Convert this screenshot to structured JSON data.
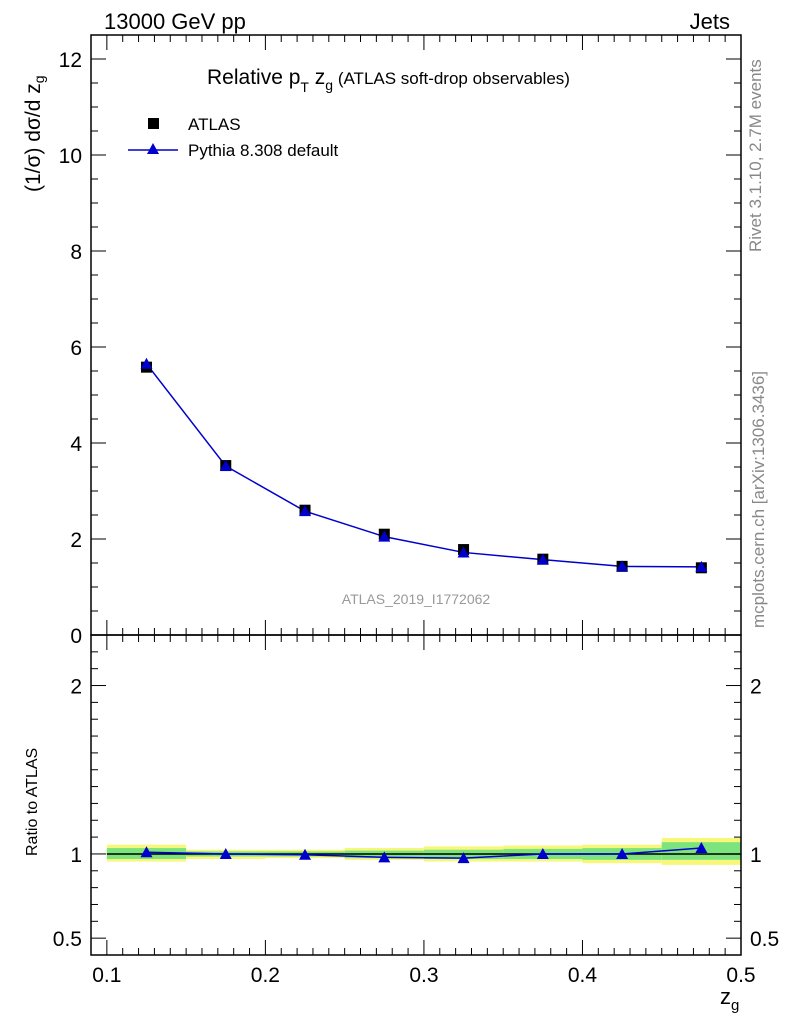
{
  "header": {
    "left": "13000 GeV pp",
    "right": "Jets"
  },
  "side": {
    "rivet": "Rivet 3.1.10,  2.7M events",
    "mcplots": "mcplots.cern.ch [arXiv:1306.3436]"
  },
  "watermark": "ATLAS_2019_I1772062",
  "chart_data": [
    {
      "type": "scatter",
      "title": "Relative pT zg (ATLAS soft-drop observables)",
      "title_parts": {
        "main": "Relative p",
        "sub1": "T",
        "mid": " z",
        "sub2": "g",
        "rest": " (ATLAS soft-drop observables)"
      },
      "ylabel": "(1/σ) dσ/d z",
      "ylabel_sub": "g",
      "xlim": [
        0.09,
        0.5
      ],
      "ylim": [
        0,
        12.5
      ],
      "yticks": [
        "0",
        "2",
        "4",
        "6",
        "8",
        "10",
        "12"
      ],
      "legend_placement": "top-left",
      "x": [
        0.125,
        0.175,
        0.225,
        0.275,
        0.325,
        0.375,
        0.425,
        0.475
      ],
      "series": [
        {
          "name": "ATLAS",
          "marker": "square",
          "color": "#000000",
          "values": [
            5.58,
            3.53,
            2.6,
            2.1,
            1.78,
            1.58,
            1.43,
            1.4
          ]
        },
        {
          "name": "Pythia 8.308 default",
          "marker": "triangle",
          "color": "#0000cc",
          "values": [
            5.65,
            3.52,
            2.58,
            2.05,
            1.72,
            1.57,
            1.43,
            1.42
          ]
        }
      ]
    },
    {
      "type": "scatter",
      "ylabel": "Ratio to ATLAS",
      "xlabel": "z",
      "xlabel_sub": "g",
      "xlim": [
        0.09,
        0.5
      ],
      "xticks": [
        "0.1",
        "0.2",
        "0.3",
        "0.4",
        "0.5"
      ],
      "ylim": [
        0.4,
        2.3
      ],
      "yticks": [
        "0.5",
        "1",
        "2"
      ],
      "x": [
        0.125,
        0.175,
        0.225,
        0.275,
        0.325,
        0.375,
        0.425,
        0.475
      ],
      "bin_edges": [
        0.1,
        0.15,
        0.2,
        0.25,
        0.3,
        0.35,
        0.4,
        0.45,
        0.5
      ],
      "band_inner": [
        [
          0.97,
          1.035
        ],
        [
          0.985,
          1.015
        ],
        [
          0.985,
          1.015
        ],
        [
          0.975,
          1.02
        ],
        [
          0.97,
          1.025
        ],
        [
          0.97,
          1.03
        ],
        [
          0.965,
          1.035
        ],
        [
          0.965,
          1.07
        ]
      ],
      "band_outer": [
        [
          0.955,
          1.055
        ],
        [
          0.97,
          1.025
        ],
        [
          0.975,
          1.025
        ],
        [
          0.965,
          1.035
        ],
        [
          0.955,
          1.045
        ],
        [
          0.955,
          1.05
        ],
        [
          0.945,
          1.055
        ],
        [
          0.935,
          1.095
        ]
      ],
      "band_colors": {
        "inner": "#7de47d",
        "outer": "#f7f77a"
      },
      "series": [
        {
          "name": "Pythia 8.308 default",
          "color": "#0000cc",
          "values": [
            1.01,
            1.0,
            0.995,
            0.98,
            0.975,
            1.0,
            1.0,
            1.035
          ]
        }
      ]
    }
  ]
}
